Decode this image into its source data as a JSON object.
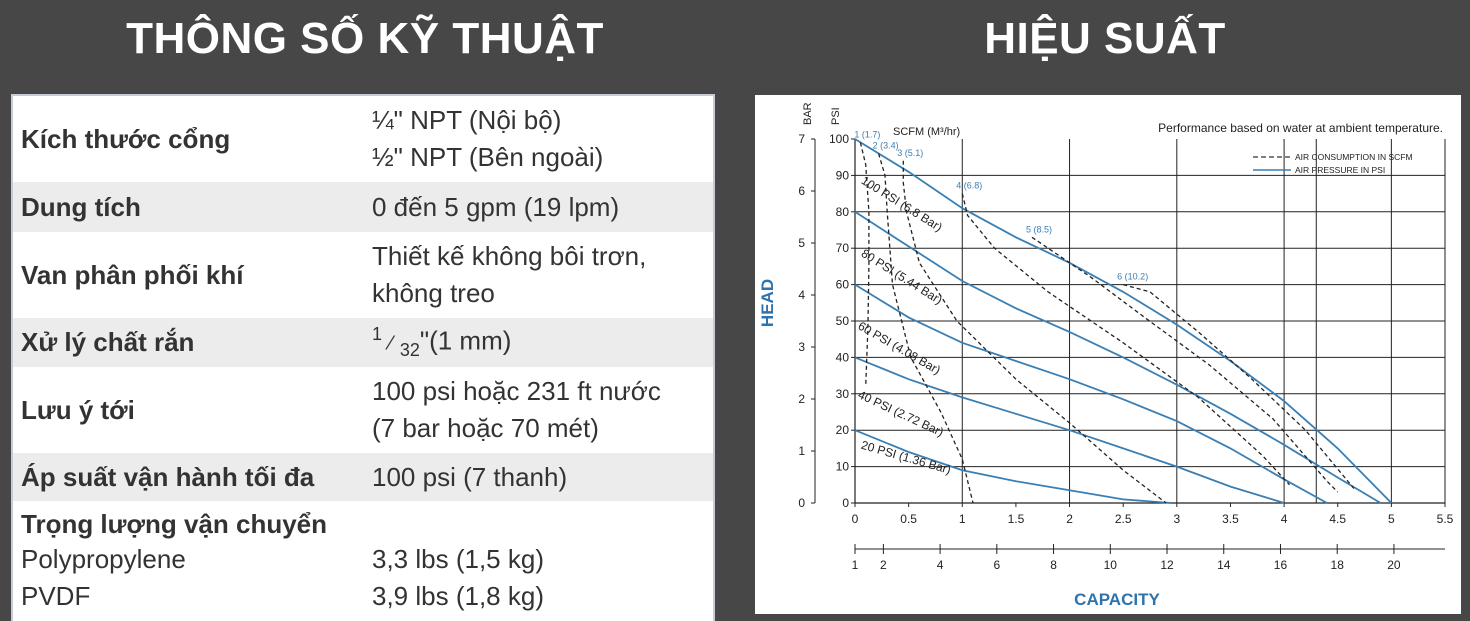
{
  "headings": {
    "left": "THÔNG SỐ KỸ THUẬT",
    "right": "HIỆU SUẤT"
  },
  "specs": [
    {
      "label": "Kích thước cổng",
      "lines": [
        "¼\" NPT (Nội bộ)",
        "½\" NPT (Bên ngoài)"
      ]
    },
    {
      "label": "Dung tích",
      "lines": [
        "0 đến 5 gpm (19 lpm)"
      ]
    },
    {
      "label": "Van phân phối khí",
      "lines": [
        "Thiết kế không bôi trơn,",
        "không treo"
      ]
    },
    {
      "label": "Xử lý chất rắn",
      "fraction": {
        "num": "1",
        "slash": "⁄",
        "den": "32",
        "rest": "\"(1 mm)"
      }
    },
    {
      "label": "Lưu ý tới",
      "lines": [
        "100 psi hoặc 231 ft nước",
        "(7 bar hoặc 70 mét)"
      ]
    },
    {
      "label": "Áp suất vận hành tối đa",
      "lines": [
        "100 psi (7 thanh)"
      ]
    },
    {
      "label": "Trọng lượng vận chuyển",
      "lines": [
        ""
      ]
    }
  ],
  "weights": [
    {
      "label": "Polypropylene",
      "value": "3,3 lbs (1,5 kg)"
    },
    {
      "label": "PVDF",
      "value": "3,9 lbs (1,8 kg)"
    }
  ],
  "chart_data": {
    "type": "line",
    "title": "Performance based on water at ambient temperature.",
    "xlabel": "CAPACITY",
    "ylabel": "HEAD",
    "x_axis_gpm": {
      "range": [
        0,
        5.5
      ],
      "ticks": [
        "0",
        "0.5",
        "1",
        "1.5",
        "2",
        "2.5",
        "3",
        "3.5",
        "4",
        "4.5",
        "5",
        "5.5"
      ]
    },
    "x_axis_lpm": {
      "range": [
        1,
        21
      ],
      "ticks": [
        "1",
        "2",
        "4",
        "6",
        "8",
        "10",
        "12",
        "14",
        "16",
        "18",
        "20"
      ]
    },
    "y_axis_psi": {
      "label": "PSI",
      "range": [
        0,
        100
      ],
      "ticks": [
        "0",
        "10",
        "20",
        "30",
        "40",
        "50",
        "60",
        "70",
        "80",
        "90",
        "100"
      ]
    },
    "y_axis_bar": {
      "label": "BAR",
      "ticks": [
        "0",
        "1",
        "2",
        "3",
        "4",
        "5",
        "6",
        "7"
      ]
    },
    "legend": {
      "position": "top-right",
      "items": [
        {
          "name": "AIR CONSUMPTION IN SCFM",
          "style": "dashed",
          "color": "#333333"
        },
        {
          "name": "AIR PRESSURE IN PSI",
          "style": "solid",
          "color": "#3a7fb4"
        }
      ]
    },
    "scfm_header": "SCFM (M³/hr)",
    "colors": {
      "pressure": "#3a7fb4",
      "scfm": "#222222",
      "axis_title": "#2f73ad"
    },
    "series": [
      {
        "name": "100 PSI (6.8 Bar)",
        "kind": "pressure",
        "x": [
          0,
          0.5,
          1,
          1.5,
          2,
          2.5,
          3,
          3.5,
          4,
          4.5,
          5
        ],
        "y": [
          100,
          91,
          81,
          73,
          66,
          58,
          49,
          39,
          28,
          15,
          0
        ]
      },
      {
        "name": "80 PSI (5.44 Bar)",
        "kind": "pressure",
        "x": [
          0,
          0.5,
          1,
          1.5,
          2,
          2.5,
          3,
          3.5,
          4,
          4.5,
          4.9
        ],
        "y": [
          80,
          70.5,
          61,
          53.5,
          47,
          40,
          32.5,
          24.5,
          16,
          7,
          0
        ]
      },
      {
        "name": "60 PSI (4.08 Bar)",
        "kind": "pressure",
        "x": [
          0,
          0.5,
          1,
          1.5,
          2,
          2.5,
          3,
          3.5,
          4,
          4.4
        ],
        "y": [
          60,
          51,
          44,
          39,
          34,
          28.5,
          22.5,
          15,
          6.5,
          0
        ]
      },
      {
        "name": "40 PSI (2.72 Bar)",
        "kind": "pressure",
        "x": [
          0,
          0.5,
          1,
          1.5,
          2,
          2.5,
          3,
          3.5,
          4.0
        ],
        "y": [
          40,
          34,
          29,
          24.5,
          20,
          15,
          10,
          4.5,
          0
        ]
      },
      {
        "name": "20 PSI (1.36 Bar)",
        "kind": "pressure",
        "x": [
          0,
          0.5,
          1,
          1.5,
          2,
          2.5,
          2.95
        ],
        "y": [
          20,
          14,
          9,
          6,
          3.5,
          1,
          0
        ]
      },
      {
        "name": "1 (1.7)",
        "kind": "scfm",
        "x": [
          0.05,
          0.1,
          0.13,
          0.13,
          0.12,
          0.1
        ],
        "y": [
          99,
          93,
          80,
          65,
          48,
          32
        ]
      },
      {
        "name": "2 (3.4)",
        "kind": "scfm",
        "x": [
          0.22,
          0.28,
          0.3,
          0.35,
          0.52,
          0.8,
          1.0,
          1.1
        ],
        "y": [
          96,
          90,
          80,
          60,
          40,
          25,
          12,
          0
        ]
      },
      {
        "name": "3 (5.1)",
        "kind": "scfm",
        "x": [
          0.45,
          0.45,
          0.48,
          0.6,
          0.95,
          1.5,
          2.0,
          2.5,
          2.9
        ],
        "y": [
          94,
          88,
          80,
          66,
          50,
          34,
          22,
          9,
          0
        ]
      },
      {
        "name": "4 (6.8)",
        "kind": "scfm",
        "x": [
          1.0,
          1.05,
          1.3,
          1.8,
          2.5,
          3.2,
          3.8,
          4.05
        ],
        "y": [
          85,
          79,
          70,
          58,
          44,
          29,
          13,
          5
        ]
      },
      {
        "name": "5 (8.5)",
        "kind": "scfm",
        "x": [
          1.65,
          1.8,
          2.2,
          2.7,
          3.3,
          3.9,
          4.4,
          4.5
        ],
        "y": [
          73,
          70,
          62,
          51,
          38,
          23,
          6,
          3
        ]
      },
      {
        "name": "6 (10.2)",
        "kind": "scfm",
        "x": [
          2.5,
          2.75,
          3.2,
          3.7,
          4.2,
          4.65
        ],
        "y": [
          60,
          58,
          47,
          34,
          20,
          4
        ]
      }
    ]
  }
}
